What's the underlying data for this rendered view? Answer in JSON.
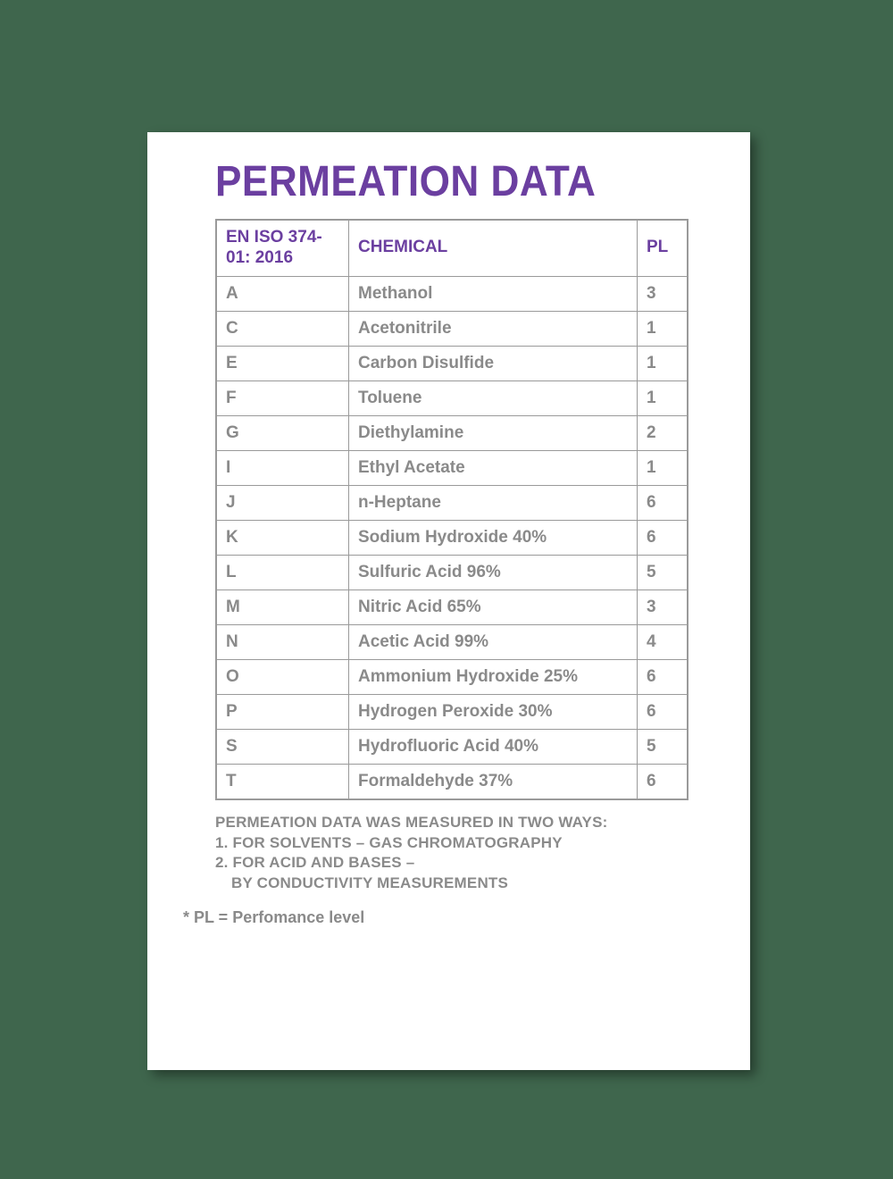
{
  "page": {
    "background_color": "#3f664d",
    "card_background": "#ffffff",
    "card_shadow": "rgba(0,0,0,0.4)"
  },
  "title": {
    "text": "PERMEATION DATA",
    "color": "#6b3fa0",
    "fontsize": 48
  },
  "table": {
    "border_color": "#9a9a9a",
    "header_color": "#6b3fa0",
    "cell_text_color": "#8a8a8a",
    "columns": {
      "code": "EN ISO 374-01: 2016",
      "chemical": "CHEMICAL",
      "pl": "PL"
    },
    "column_widths": {
      "code": 148,
      "pl": 56
    },
    "rows": [
      {
        "code": "A",
        "chemical": "Methanol",
        "pl": "3"
      },
      {
        "code": "C",
        "chemical": "Acetonitrile",
        "pl": "1"
      },
      {
        "code": "E",
        "chemical": "Carbon Disulfide",
        "pl": "1"
      },
      {
        "code": "F",
        "chemical": "Toluene",
        "pl": "1"
      },
      {
        "code": "G",
        "chemical": "Diethylamine",
        "pl": "2"
      },
      {
        "code": "I",
        "chemical": "Ethyl Acetate",
        "pl": "1"
      },
      {
        "code": "J",
        "chemical": "n-Heptane",
        "pl": "6"
      },
      {
        "code": "K",
        "chemical": "Sodium Hydroxide 40%",
        "pl": "6"
      },
      {
        "code": "L",
        "chemical": "Sulfuric Acid 96%",
        "pl": "5"
      },
      {
        "code": "M",
        "chemical": "Nitric Acid 65%",
        "pl": "3"
      },
      {
        "code": "N",
        "chemical": "Acetic Acid 99%",
        "pl": "4"
      },
      {
        "code": "O",
        "chemical": "Ammonium Hydroxide 25%",
        "pl": "6"
      },
      {
        "code": "P",
        "chemical": "Hydrogen Peroxide 30%",
        "pl": "6"
      },
      {
        "code": "S",
        "chemical": "Hydrofluoric Acid 40%",
        "pl": "5"
      },
      {
        "code": "T",
        "chemical": "Formaldehyde 37%",
        "pl": "6"
      }
    ]
  },
  "notes": {
    "intro": "PERMEATION DATA WAS MEASURED IN TWO WAYS:",
    "item1": "1. FOR SOLVENTS – GAS CHROMATOGRAPHY",
    "item2a": "2. FOR ACID AND BASES –",
    "item2b": "BY CONDUCTIVITY MEASUREMENTS",
    "text_color": "#8a8a8a"
  },
  "footnote": {
    "text": "* PL = Perfomance level",
    "text_color": "#8a8a8a"
  }
}
